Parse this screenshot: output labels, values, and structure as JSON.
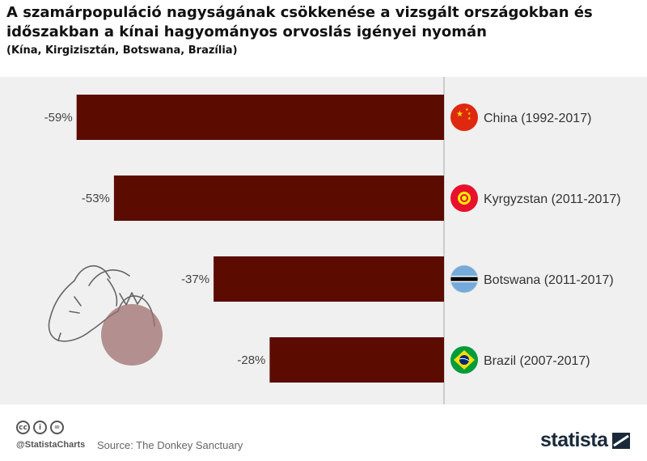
{
  "title": "A szamárpopuláció nagyságának csökkenése a vizsgált országokban és időszakban a kínai hagyományos orvoslás igényei nyomán",
  "subtitle": "(Kína, Kirgizisztán, Botswana, Brazília)",
  "chart_data": {
    "type": "bar",
    "orientation": "horizontal",
    "categories": [
      "China (1992-2017)",
      "Kyrgyzstan (2011-2017)",
      "Botswana (2011-2017)",
      "Brazil (2007-2017)"
    ],
    "values": [
      -59,
      -53,
      -37,
      -28
    ],
    "value_labels": [
      "-59%",
      "-53%",
      "-37%",
      "-28%"
    ],
    "xlim": [
      -65,
      0
    ],
    "bar_color": "#5c0b00",
    "background_color": "#f0f0f0",
    "flags": [
      "china-flag-icon",
      "kyrgyzstan-flag-icon",
      "botswana-flag-icon",
      "brazil-flag-icon"
    ]
  },
  "footer": {
    "handle": "@StatistaCharts",
    "source": "Source: The Donkey Sanctuary",
    "brand": "statista",
    "license_icons": [
      "cc-icon",
      "by-icon",
      "nd-icon"
    ]
  }
}
